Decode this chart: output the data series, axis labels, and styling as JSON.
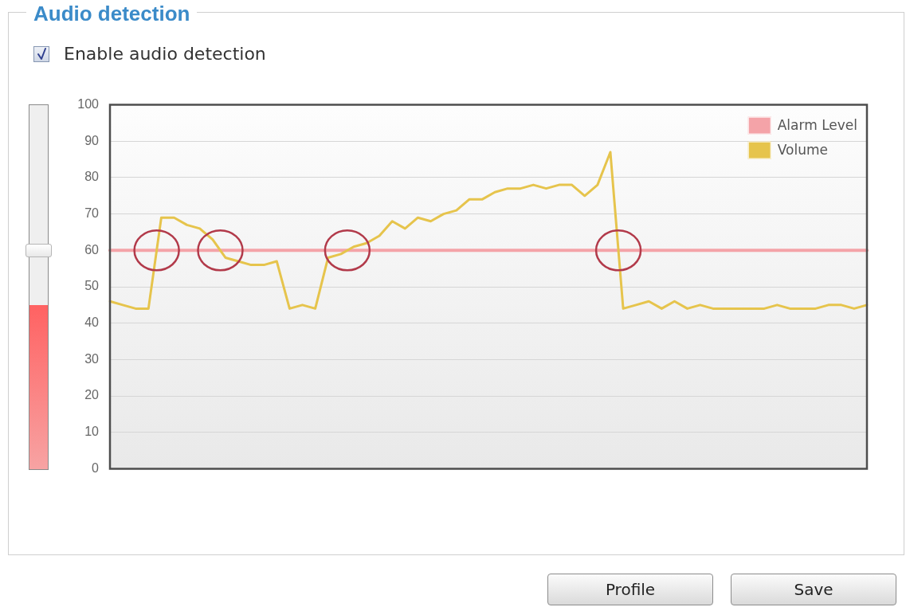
{
  "chart_data": {
    "type": "line",
    "title": "Audio detection",
    "categories": [
      null,
      null,
      null,
      null,
      null,
      null,
      null,
      null,
      null,
      null,
      null,
      null,
      null,
      null,
      null,
      null,
      null,
      null,
      null,
      null,
      null,
      null,
      null,
      null,
      null,
      null,
      null,
      null,
      null,
      null,
      null,
      null,
      null,
      null,
      null,
      null,
      null,
      null,
      null,
      null,
      null,
      null,
      null,
      null,
      null,
      null,
      null,
      null,
      null,
      null,
      null,
      null,
      null,
      null,
      null,
      null,
      null,
      null,
      null,
      null
    ],
    "series": [
      {
        "name": "Alarm Level",
        "color": "#f4a3a8",
        "values": [
          60,
          60,
          60,
          60,
          60,
          60,
          60,
          60,
          60,
          60,
          60,
          60,
          60,
          60,
          60,
          60,
          60,
          60,
          60,
          60,
          60,
          60,
          60,
          60,
          60,
          60,
          60,
          60,
          60,
          60,
          60,
          60,
          60,
          60,
          60,
          60,
          60,
          60,
          60,
          60,
          60,
          60,
          60,
          60,
          60,
          60,
          60,
          60,
          60,
          60,
          60,
          60,
          60,
          60,
          60,
          60,
          60,
          60,
          60,
          60
        ]
      },
      {
        "name": "Volume",
        "color": "#e6c44c",
        "values": [
          46,
          45,
          44,
          44,
          69,
          69,
          67,
          66,
          63,
          58,
          57,
          56,
          56,
          57,
          44,
          45,
          44,
          58,
          59,
          61,
          62,
          64,
          68,
          66,
          69,
          68,
          70,
          71,
          74,
          74,
          76,
          77,
          77,
          78,
          77,
          78,
          78,
          75,
          78,
          87,
          44,
          45,
          46,
          44,
          46,
          44,
          45,
          44,
          44,
          44,
          44,
          44,
          45,
          44,
          44,
          44,
          45,
          45,
          44,
          45
        ]
      }
    ],
    "ylim": [
      0,
      100
    ],
    "yticks": [
      0,
      10,
      20,
      30,
      40,
      50,
      60,
      70,
      80,
      90,
      100
    ],
    "grid": "y",
    "legend": "top right",
    "marker": "none",
    "tick_labels": "y",
    "annotations": [
      "Enable audio detection",
      "Profile",
      "Save"
    ]
  }
}
